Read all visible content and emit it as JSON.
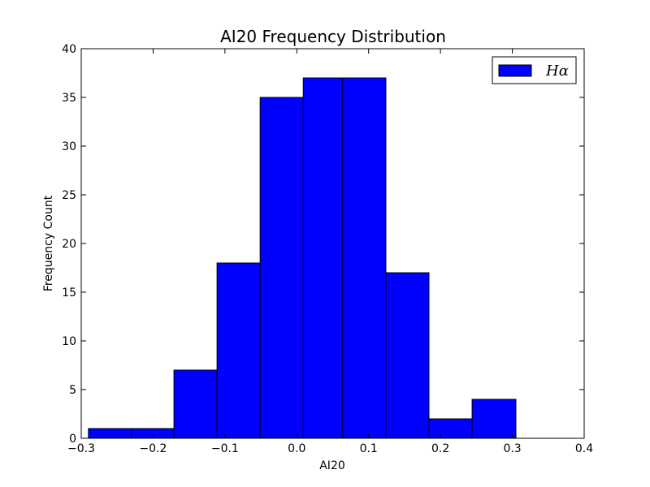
{
  "chart_data": {
    "type": "bar",
    "title": "AI20 Frequency Distribution",
    "xlabel": "AI20",
    "ylabel": "Frequency Count",
    "xlim": [
      -0.3,
      0.4
    ],
    "ylim": [
      0,
      40
    ],
    "x_ticks": [
      -0.3,
      -0.2,
      -0.1,
      0.0,
      0.1,
      0.2,
      0.3,
      0.4
    ],
    "x_tick_labels": [
      "−0.3",
      "−0.2",
      "−0.1",
      "0.0",
      "0.1",
      "0.2",
      "0.3",
      "0.4"
    ],
    "y_ticks": [
      0,
      5,
      10,
      15,
      20,
      25,
      30,
      35,
      40
    ],
    "y_tick_labels": [
      "0",
      "5",
      "10",
      "15",
      "20",
      "25",
      "30",
      "35",
      "40"
    ],
    "bins": [
      {
        "start": -0.29,
        "end": -0.23,
        "value": 1
      },
      {
        "start": -0.23,
        "end": -0.171,
        "value": 1
      },
      {
        "start": -0.171,
        "end": -0.111,
        "value": 7
      },
      {
        "start": -0.111,
        "end": -0.051,
        "value": 18
      },
      {
        "start": -0.051,
        "end": 0.009,
        "value": 35
      },
      {
        "start": 0.009,
        "end": 0.064,
        "value": 37
      },
      {
        "start": 0.064,
        "end": 0.124,
        "value": 37
      },
      {
        "start": 0.124,
        "end": 0.184,
        "value": 17
      },
      {
        "start": 0.184,
        "end": 0.244,
        "value": 2
      },
      {
        "start": 0.244,
        "end": 0.305,
        "value": 4
      }
    ],
    "series": [
      {
        "name": "Hα",
        "color": "#0000ff"
      }
    ],
    "legend_position": "top-right",
    "grid": false
  }
}
